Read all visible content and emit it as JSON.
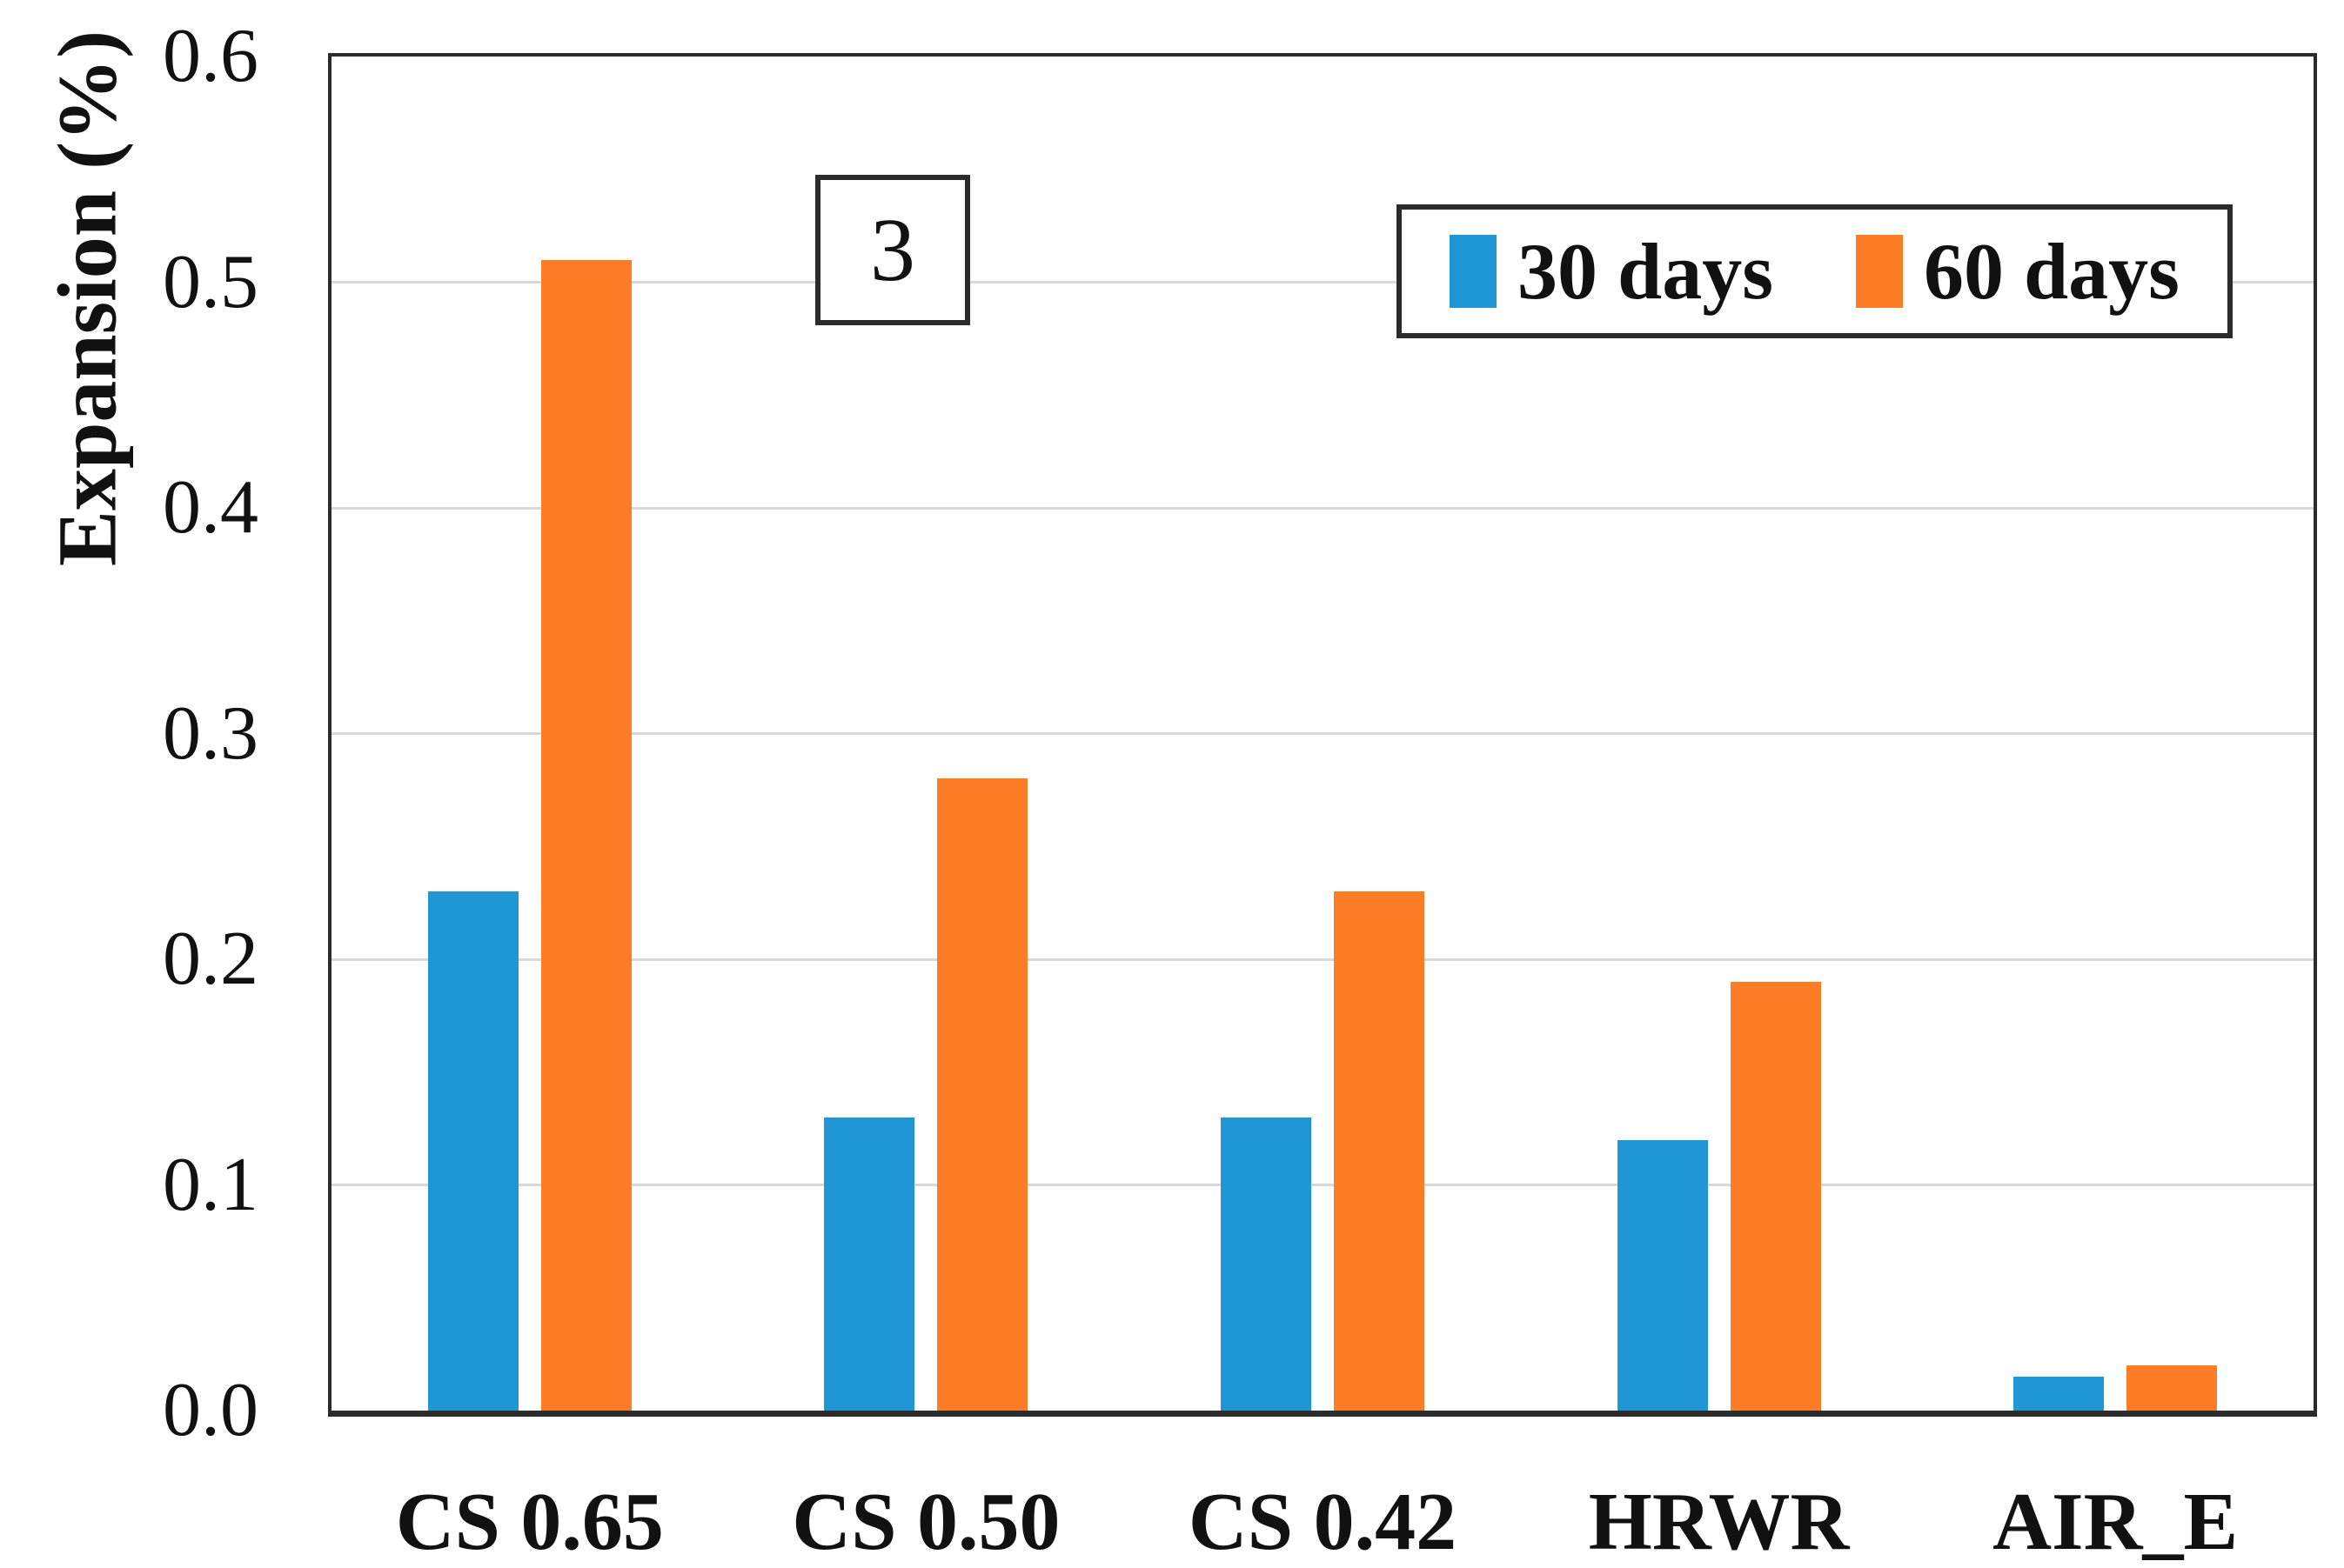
{
  "chart_data": {
    "type": "bar",
    "title": "",
    "ylabel": "Expansion (%)",
    "xlabel": "",
    "categories": [
      "CS 0.65",
      "CS 0.50",
      "CS 0.42",
      "HRWR",
      "AIR_E"
    ],
    "series": [
      {
        "name": "30 days",
        "color": "#2196d6",
        "values": [
          0.23,
          0.13,
          0.13,
          0.12,
          0.015
        ]
      },
      {
        "name": "60 days",
        "color": "#fc7d25",
        "values": [
          0.51,
          0.28,
          0.23,
          0.19,
          0.02
        ]
      }
    ],
    "ylim": [
      0,
      0.6
    ],
    "yticks": [
      0.6,
      0.5,
      0.4,
      0.3,
      0.2,
      0.1,
      0.0
    ],
    "ytick_labels": [
      "0.6",
      "0.5",
      "0.4",
      "0.3",
      "0.2",
      "0.1",
      "0.0"
    ],
    "grid": "horizontal",
    "gridline_color": "#d9d9d9",
    "frame_color": "#2b2b2b",
    "legend_position": "top-right"
  },
  "annotation": {
    "text": "3"
  }
}
